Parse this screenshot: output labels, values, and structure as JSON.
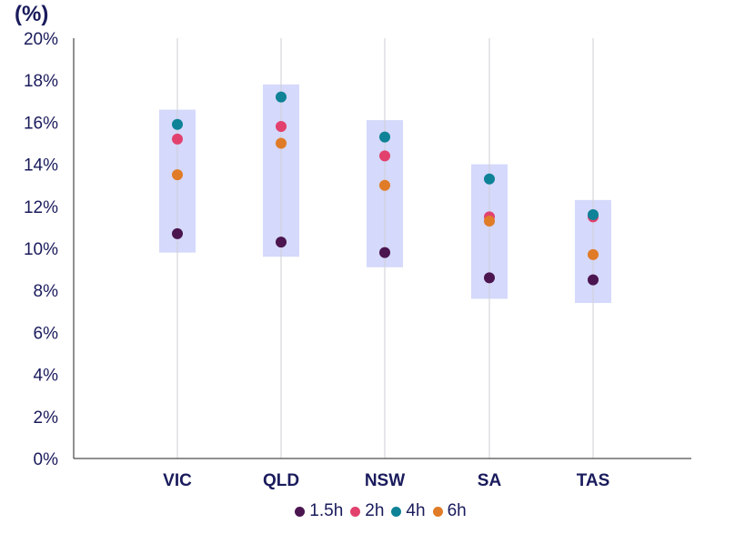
{
  "chart_data": {
    "type": "scatter",
    "unit_label": "(%)",
    "categories": [
      "VIC",
      "QLD",
      "NSW",
      "SA",
      "TAS"
    ],
    "ylim": [
      0,
      20
    ],
    "yticks": [
      "0%",
      "2%",
      "4%",
      "6%",
      "8%",
      "10%",
      "12%",
      "14%",
      "16%",
      "18%",
      "20%"
    ],
    "ranges": [
      {
        "category": "VIC",
        "low": 9.8,
        "high": 16.6
      },
      {
        "category": "QLD",
        "low": 9.6,
        "high": 17.8
      },
      {
        "category": "NSW",
        "low": 9.1,
        "high": 16.1
      },
      {
        "category": "SA",
        "low": 7.6,
        "high": 14.0
      },
      {
        "category": "TAS",
        "low": 7.4,
        "high": 12.3
      }
    ],
    "series": [
      {
        "name": "1.5h",
        "color": "#4b1550",
        "values": [
          10.7,
          10.3,
          9.8,
          8.6,
          8.5
        ]
      },
      {
        "name": "2h",
        "color": "#e2416e",
        "values": [
          15.2,
          15.8,
          14.4,
          11.5,
          11.5
        ]
      },
      {
        "name": "4h",
        "color": "#0e8296",
        "values": [
          15.9,
          17.2,
          15.3,
          13.3,
          11.6
        ]
      },
      {
        "name": "6h",
        "color": "#e07b28",
        "values": [
          13.5,
          15.0,
          13.0,
          11.3,
          9.7
        ]
      }
    ],
    "colors": {
      "axis_text": "#1a1b5c",
      "range_band": "#d5d9fb",
      "gridline": "#cfcfd6",
      "axis": "#222222"
    }
  }
}
